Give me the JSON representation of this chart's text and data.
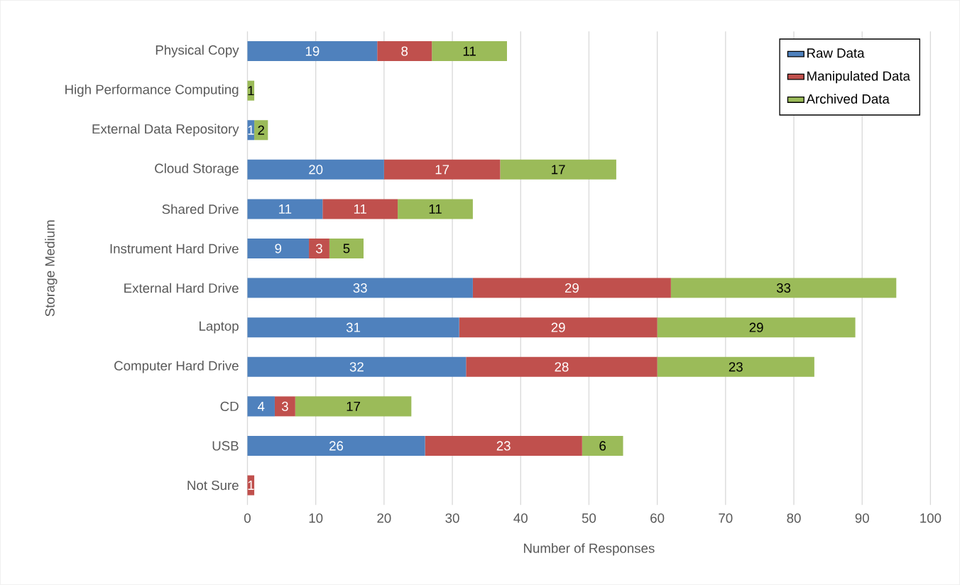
{
  "chart_data": {
    "type": "bar",
    "orientation": "horizontal",
    "stacked": true,
    "xlabel": "Number of Responses",
    "ylabel": "Storage Medium",
    "categories": [
      "Physical Copy",
      "High Performance Computing",
      "External Data Repository",
      "Cloud Storage",
      "Shared Drive",
      "Instrument Hard Drive",
      "External Hard Drive",
      "Laptop",
      "Computer Hard Drive",
      "CD",
      "USB",
      "Not Sure"
    ],
    "series": [
      {
        "name": "Raw Data",
        "color": "#4f81bd",
        "values": [
          19,
          0,
          1,
          20,
          11,
          9,
          33,
          31,
          32,
          4,
          26,
          0
        ],
        "value_labels": [
          "19",
          null,
          "1",
          "20",
          "11",
          "9",
          "33",
          "31",
          "32",
          "4",
          "26",
          null
        ]
      },
      {
        "name": "Manipulated Data",
        "color": "#c0504d",
        "values": [
          8,
          0,
          0,
          17,
          11,
          3,
          29,
          29,
          28,
          3,
          23,
          1
        ],
        "value_labels": [
          "8",
          null,
          null,
          "17",
          "11",
          "3",
          "29",
          "29",
          "28",
          "3",
          "23",
          "1"
        ]
      },
      {
        "name": "Archived Data",
        "color": "#9bbb59",
        "values": [
          11,
          1,
          2,
          17,
          11,
          5,
          33,
          29,
          23,
          17,
          6,
          0
        ],
        "value_labels": [
          "11",
          "1",
          "2",
          "17",
          "11",
          "5",
          "33",
          "29",
          "23",
          "17",
          "6",
          null
        ]
      }
    ],
    "xlim": [
      0,
      100
    ],
    "xticks": [
      0,
      10,
      20,
      30,
      40,
      50,
      60,
      70,
      80,
      90,
      100
    ],
    "grid": "x",
    "legend": "top right"
  }
}
